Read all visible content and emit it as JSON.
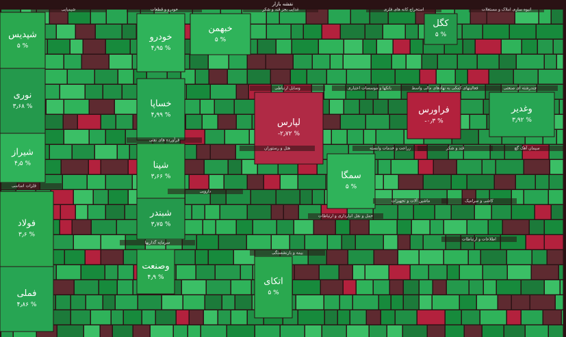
{
  "header": {
    "title": "نقشه بازار"
  },
  "sectors": [
    "شیمیایی",
    "خودرو و قطعات",
    "غذایی بجز قند و شکر",
    "استخراج کانه های فلزی",
    "انبوه سازی املاک و مستغلات",
    "وسایل ارتباطی",
    "بانکها و موسسات اعتباری",
    "فعالیتهای کمکی به نهادهای مالی واسط",
    "چندرشته ای صنعتی",
    "فرآورده های نفتی",
    "فلزات اساسی",
    "دارویی",
    "هتل و رستوران",
    "زراعت و خدمات وابسته",
    "قند و شکر",
    "سیمان آهک گچ",
    "سرمایه گذاریها",
    "بیمه و بازنشستگی",
    "حمل و نقل انبارداری و ارتباطات",
    "ماشین آلات و تجهیزات",
    "کاشی و سرامیک",
    "اطلاعات و ارتباطات"
  ],
  "tiles": [
    {
      "name": "شپدیس",
      "change": "۵ %"
    },
    {
      "name": "نوری",
      "change": "۳٫۶۸ %"
    },
    {
      "name": "شیراز",
      "change": "۴٫۵ %"
    },
    {
      "name": "فولاد",
      "change": "۳٫۶ %"
    },
    {
      "name": "فملی",
      "change": "۴٫۸۶ %"
    },
    {
      "name": "خودرو",
      "change": "۴٫۹۵ %"
    },
    {
      "name": "خساپا",
      "change": "۴٫۹۹ %"
    },
    {
      "name": "شپنا",
      "change": "۳٫۶۶ %"
    },
    {
      "name": "شبندر",
      "change": "۳٫۷۵ %"
    },
    {
      "name": "وصنعت",
      "change": "۴٫۹ %"
    },
    {
      "name": "لپارس",
      "change": "-۲٫۷۲ %"
    },
    {
      "name": "فراورس",
      "change": "-۰٫۳ %"
    },
    {
      "name": "وغدیر",
      "change": "۳٫۹۲ %"
    },
    {
      "name": "سمگا",
      "change": "۵ %"
    },
    {
      "name": "اتکای",
      "change": "۵ %"
    },
    {
      "name": "خبهمن",
      "change": "۵ %"
    },
    {
      "name": "کگل",
      "change": "۵ %"
    }
  ]
}
